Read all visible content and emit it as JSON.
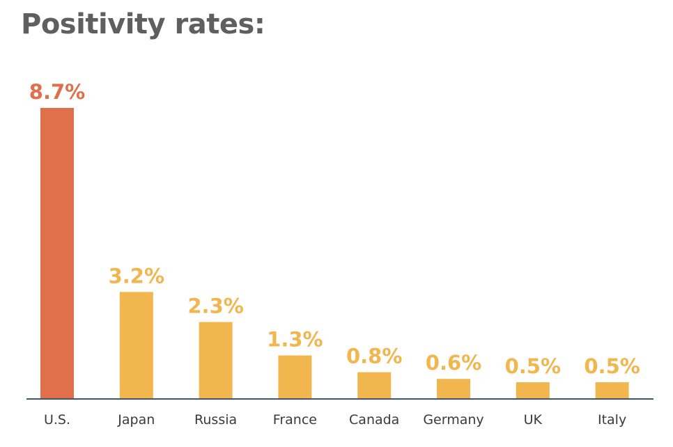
{
  "chart_data": {
    "type": "bar",
    "title": "Positivity rates:",
    "categories": [
      "U.S.",
      "Japan",
      "Russia",
      "France",
      "Canada",
      "Germany",
      "UK",
      "Italy"
    ],
    "values": [
      8.7,
      3.2,
      2.3,
      1.3,
      0.8,
      0.6,
      0.5,
      0.5
    ],
    "value_labels": [
      "8.7%",
      "3.2%",
      "2.3%",
      "1.3%",
      "0.8%",
      "0.6%",
      "0.5%",
      "0.5%"
    ],
    "unit": "%",
    "ylim": [
      0,
      8.7
    ],
    "grid": false,
    "legend": "none",
    "colors": {
      "highlight": "#e06f4b",
      "default": "#f2b64f",
      "axis": "#3f556b"
    },
    "highlight_index": 0
  }
}
